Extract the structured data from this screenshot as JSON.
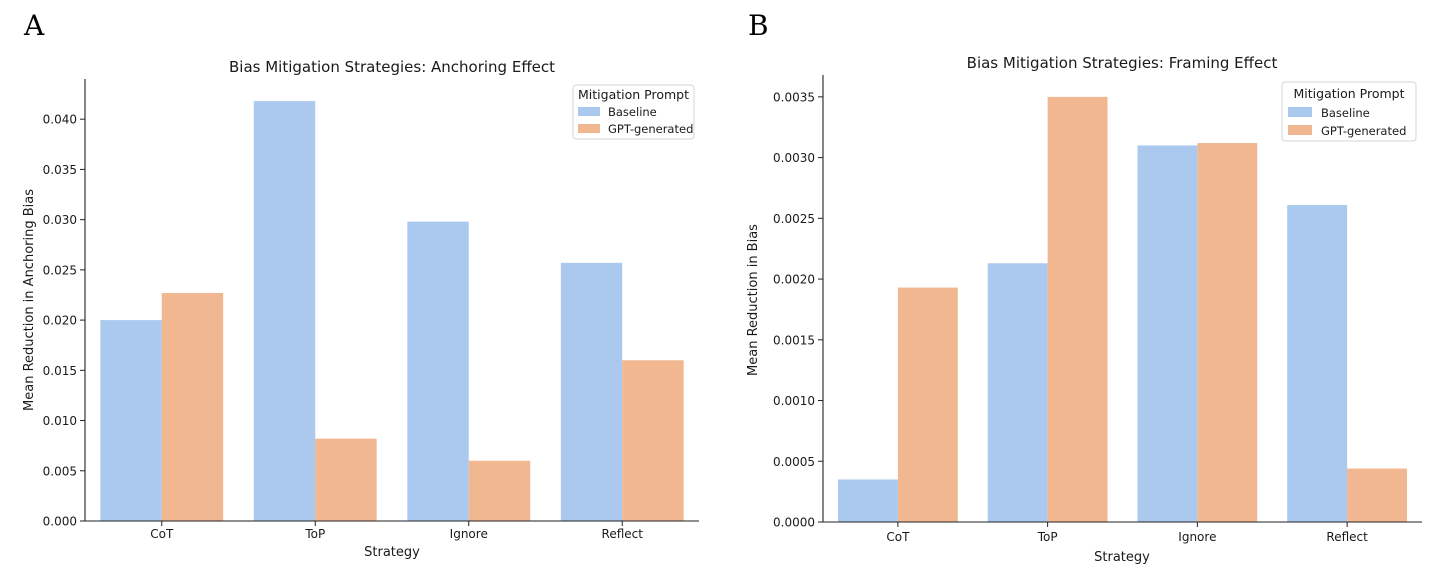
{
  "panels": [
    {
      "letter": "A",
      "chart_data": {
        "type": "bar",
        "title": "Bias Mitigation Strategies: Anchoring Effect",
        "xlabel": "Strategy",
        "ylabel": "Mean Reduction in Anchoring Bias",
        "categories": [
          "CoT",
          "ToP",
          "Ignore",
          "Reflect"
        ],
        "series": [
          {
            "name": "Baseline",
            "color": "#abc9ee",
            "values": [
              0.02,
              0.0418,
              0.0298,
              0.0257
            ]
          },
          {
            "name": "GPT-generated",
            "color": "#f0b791",
            "values": [
              0.0227,
              0.0082,
              0.006,
              0.016
            ]
          }
        ],
        "ylim": [
          0,
          0.044
        ],
        "yticks": [
          0.0,
          0.005,
          0.01,
          0.015,
          0.02,
          0.025,
          0.03,
          0.035,
          0.04
        ],
        "ytick_labels": [
          "0.000",
          "0.005",
          "0.010",
          "0.015",
          "0.020",
          "0.025",
          "0.030",
          "0.035",
          "0.040"
        ],
        "grid": false,
        "legend": {
          "title": "Mitigation Prompt",
          "placement": "top-right"
        }
      }
    },
    {
      "letter": "B",
      "chart_data": {
        "type": "bar",
        "title": "Bias Mitigation Strategies: Framing Effect",
        "xlabel": "Strategy",
        "ylabel": "Mean Reduction in Bias",
        "categories": [
          "CoT",
          "ToP",
          "Ignore",
          "Reflect"
        ],
        "series": [
          {
            "name": "Baseline",
            "color": "#abc9ee",
            "values": [
              0.00035,
              0.00213,
              0.0031,
              0.00261
            ]
          },
          {
            "name": "GPT-generated",
            "color": "#f0b791",
            "values": [
              0.00193,
              0.0035,
              0.00312,
              0.00044
            ]
          }
        ],
        "ylim": [
          0,
          0.00368
        ],
        "yticks": [
          0.0,
          0.0005,
          0.001,
          0.0015,
          0.002,
          0.0025,
          0.003,
          0.0035
        ],
        "ytick_labels": [
          "0.0000",
          "0.0005",
          "0.0010",
          "0.0015",
          "0.0020",
          "0.0025",
          "0.0030",
          "0.0035"
        ],
        "grid": false,
        "legend": {
          "title": "Mitigation Prompt",
          "placement": "top-right"
        }
      }
    }
  ]
}
